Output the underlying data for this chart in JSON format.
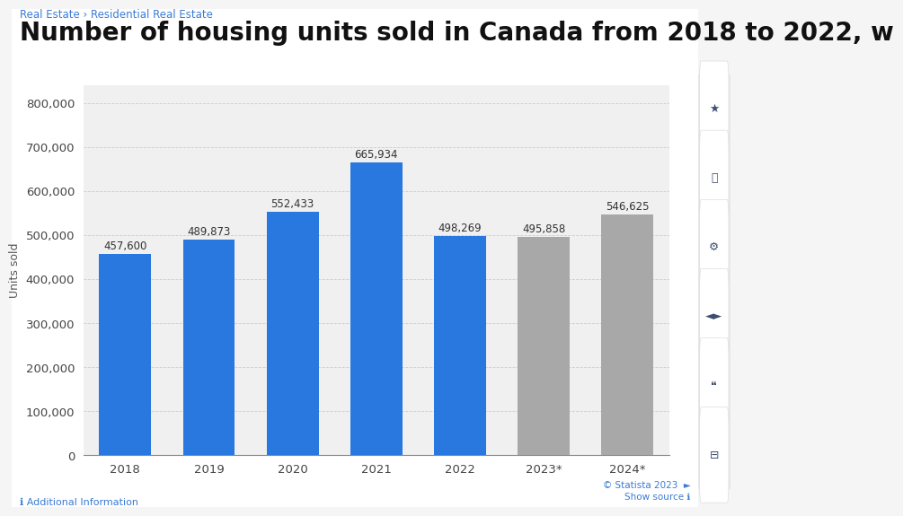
{
  "categories": [
    "2018",
    "2019",
    "2020",
    "2021",
    "2022",
    "2023*",
    "2024*"
  ],
  "values": [
    457600,
    489873,
    552433,
    665934,
    498269,
    495858,
    546625
  ],
  "bar_colors": [
    "#2878e0",
    "#2878e0",
    "#2878e0",
    "#2878e0",
    "#2878e0",
    "#a8a8a8",
    "#a8a8a8"
  ],
  "labels": [
    "457,600",
    "489,873",
    "552,433",
    "665,934",
    "498,269",
    "495,858",
    "546,625"
  ],
  "ylabel": "Units sold",
  "ylim": [
    0,
    840000
  ],
  "yticks": [
    0,
    100000,
    200000,
    300000,
    400000,
    500000,
    600000,
    700000,
    800000
  ],
  "background_color": "#f5f5f5",
  "chart_bg_color": "#ffffff",
  "plot_bg_color": "#f0f0f0",
  "grid_color": "#cccccc",
  "breadcrumb": "Real Estate › Residential Real Estate",
  "title_text": "Number of housing units sold in Canada from 2018 to 2022, w",
  "footer_left": "ℹ Additional Information",
  "statista_line": "© Statista 2023  ►",
  "show_source_line": "Show source ℹ",
  "title_fontsize": 20,
  "label_fontsize": 8.5,
  "tick_fontsize": 9.5,
  "ylabel_fontsize": 9
}
